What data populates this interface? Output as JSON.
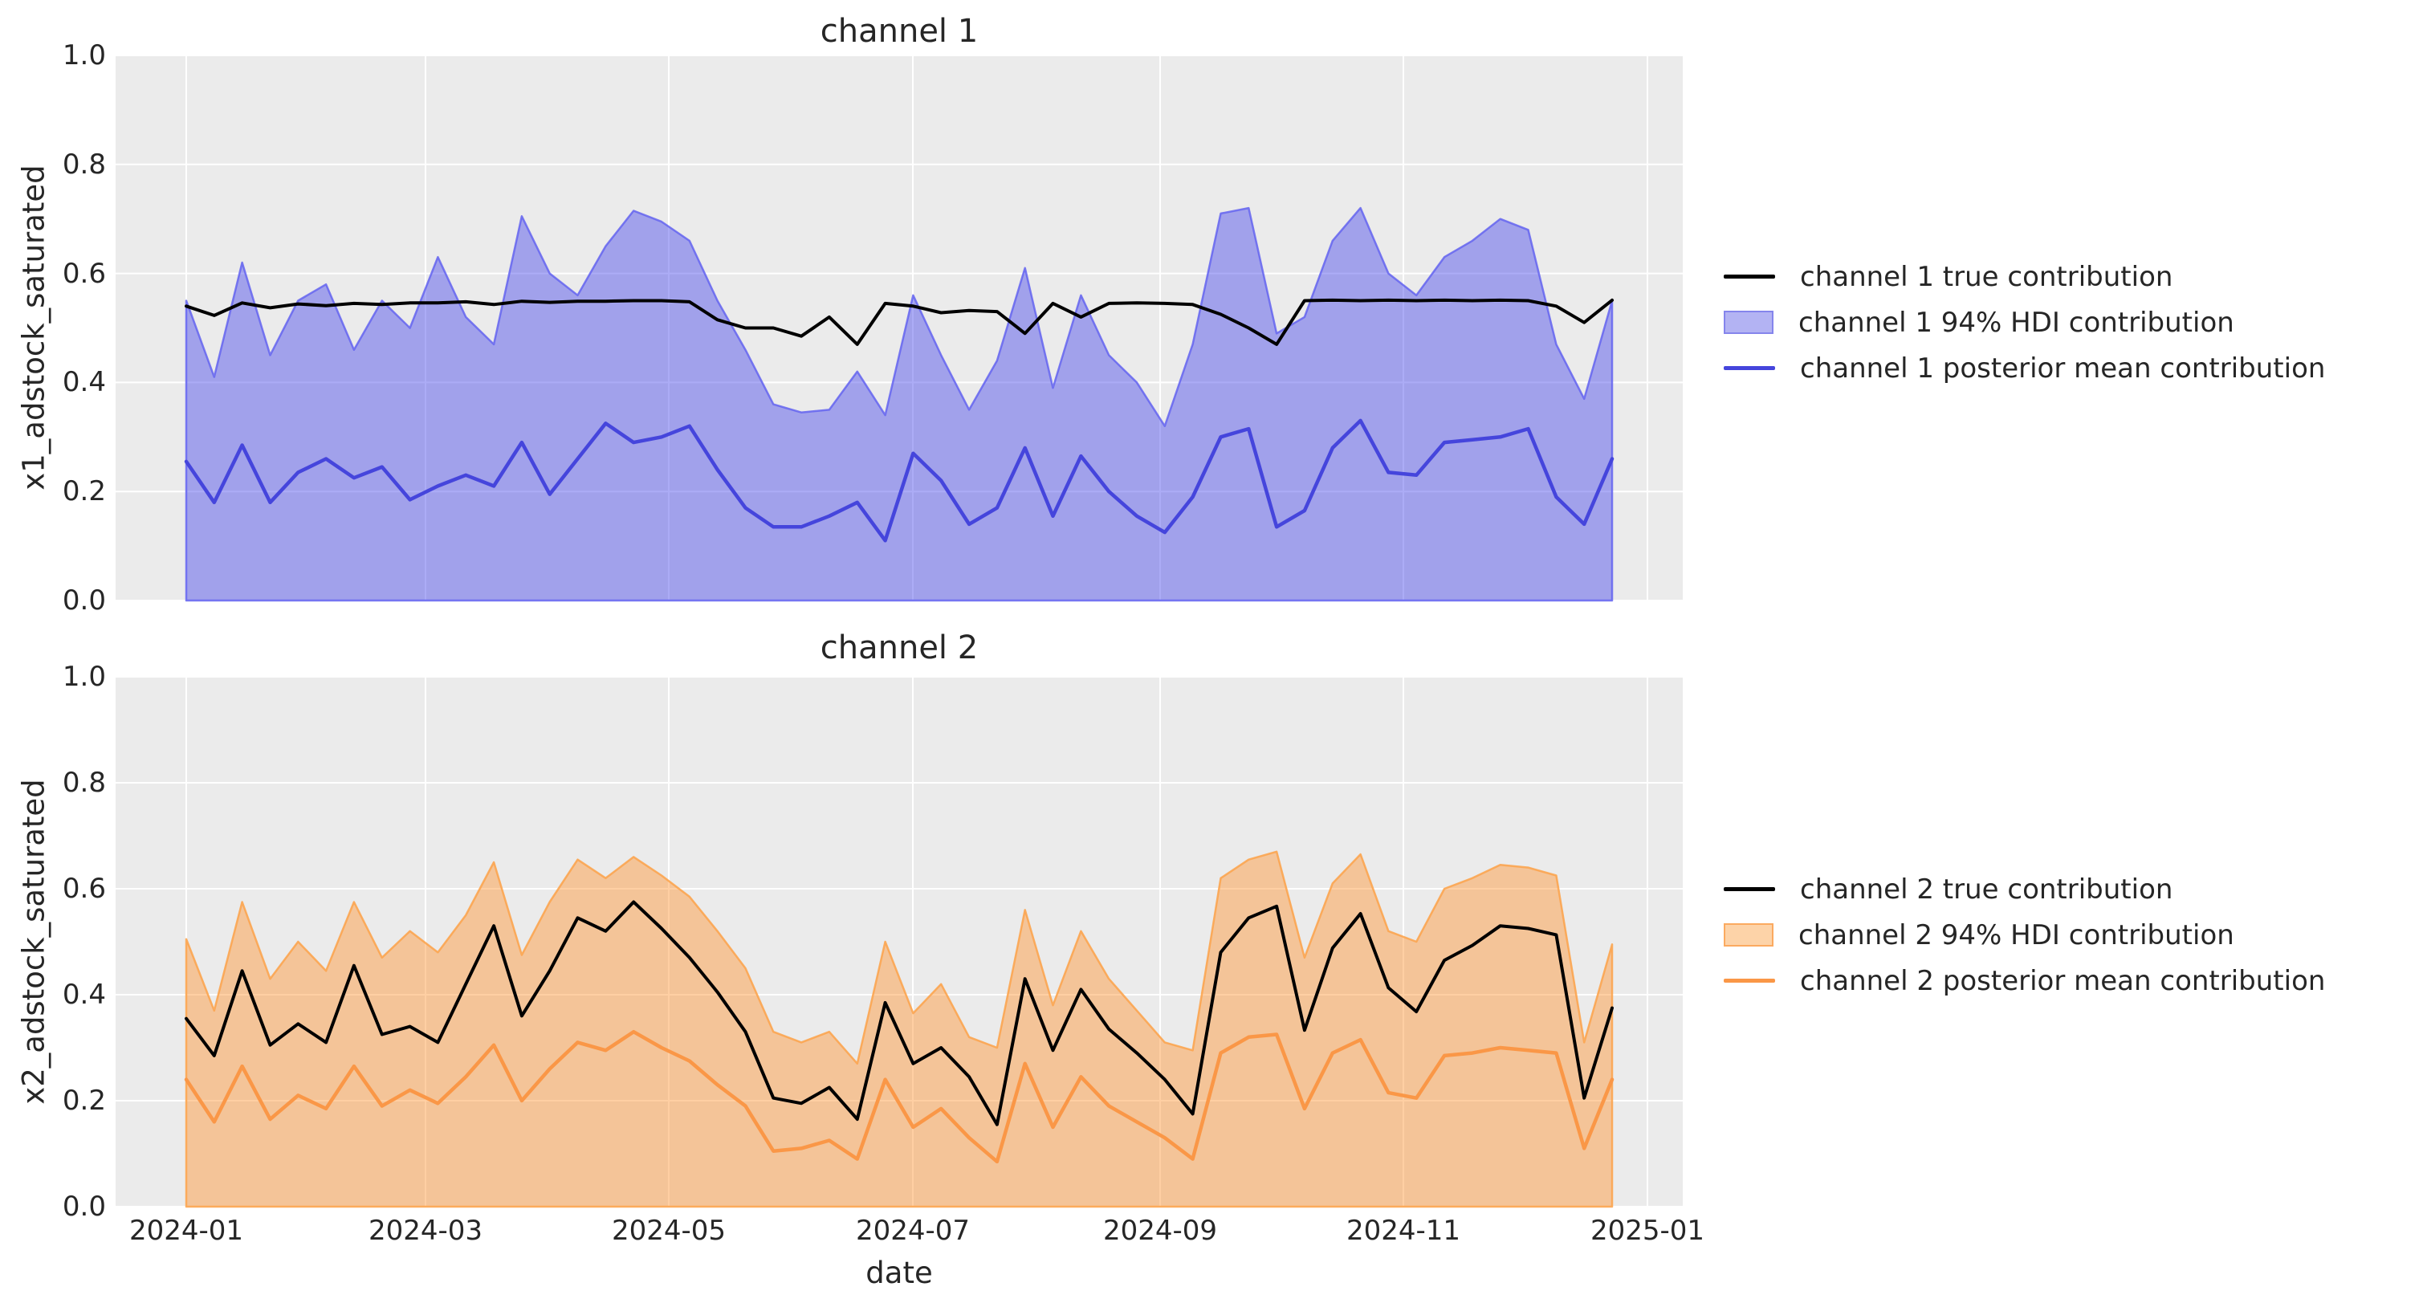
{
  "figure": {
    "background": "#ffffff",
    "plot_background": "#ebebeb",
    "grid_color": "#ffffff",
    "text_color": "#262626"
  },
  "labels": {
    "xlabel": "date"
  },
  "chart_data": [
    {
      "type": "line",
      "title": "channel 1",
      "ylabel": "x1_adstock_saturated",
      "xlabel": "",
      "ylim": [
        0.0,
        1.0
      ],
      "y_ticklabels": [
        "0.0",
        "0.2",
        "0.4",
        "0.6",
        "0.8",
        "1.0"
      ],
      "x_ticklabels": [],
      "x_gridline_dates": [
        "2024-01",
        "2024-03",
        "2024-05",
        "2024-07",
        "2024-09",
        "2024-11",
        "2025-01"
      ],
      "x_points": 52,
      "x_range_dates": [
        "2024-01-01",
        "2024-12-23"
      ],
      "grid": true,
      "legend_position": "right",
      "series": [
        {
          "name": "channel 1 true contribution",
          "kind": "line",
          "color": "#000000",
          "values": [
            0.54,
            0.523,
            0.546,
            0.537,
            0.544,
            0.541,
            0.545,
            0.543,
            0.546,
            0.546,
            0.548,
            0.543,
            0.549,
            0.547,
            0.549,
            0.549,
            0.55,
            0.55,
            0.548,
            0.515,
            0.5,
            0.5,
            0.485,
            0.52,
            0.47,
            0.545,
            0.54,
            0.528,
            0.532,
            0.53,
            0.49,
            0.545,
            0.52,
            0.545,
            0.546,
            0.545,
            0.543,
            0.525,
            0.5,
            0.47,
            0.55,
            0.551,
            0.55,
            0.551,
            0.55,
            0.551,
            0.55,
            0.551,
            0.55,
            0.54,
            0.51,
            0.551
          ]
        },
        {
          "name": "channel 1 94% HDI contribution",
          "kind": "band",
          "fill": "rgba(72,72,235,0.45)",
          "edge": "rgba(100,100,240,0.85)",
          "swatch_fill": "#b3b3f3",
          "swatch_edge": "#8585ec",
          "lower": 0.0,
          "upper": [
            0.55,
            0.41,
            0.62,
            0.45,
            0.55,
            0.58,
            0.46,
            0.55,
            0.5,
            0.63,
            0.52,
            0.47,
            0.705,
            0.6,
            0.56,
            0.65,
            0.715,
            0.695,
            0.66,
            0.55,
            0.46,
            0.36,
            0.345,
            0.35,
            0.42,
            0.34,
            0.56,
            0.45,
            0.35,
            0.44,
            0.61,
            0.39,
            0.56,
            0.45,
            0.4,
            0.32,
            0.47,
            0.71,
            0.72,
            0.49,
            0.52,
            0.66,
            0.72,
            0.6,
            0.56,
            0.63,
            0.66,
            0.7,
            0.68,
            0.47,
            0.37,
            0.55
          ]
        },
        {
          "name": "channel 1 posterior mean contribution",
          "kind": "line",
          "color": "#4545dc",
          "values": [
            0.255,
            0.18,
            0.285,
            0.18,
            0.235,
            0.26,
            0.225,
            0.245,
            0.185,
            0.21,
            0.23,
            0.21,
            0.29,
            0.195,
            0.26,
            0.325,
            0.29,
            0.3,
            0.32,
            0.24,
            0.17,
            0.135,
            0.135,
            0.155,
            0.18,
            0.11,
            0.27,
            0.22,
            0.14,
            0.17,
            0.28,
            0.155,
            0.265,
            0.2,
            0.155,
            0.125,
            0.19,
            0.3,
            0.315,
            0.135,
            0.165,
            0.28,
            0.33,
            0.235,
            0.23,
            0.29,
            0.295,
            0.3,
            0.315,
            0.19,
            0.14,
            0.26
          ]
        }
      ]
    },
    {
      "type": "line",
      "title": "channel 2",
      "ylabel": "x2_adstock_saturated",
      "xlabel": "date",
      "ylim": [
        0.0,
        1.0
      ],
      "y_ticklabels": [
        "0.0",
        "0.2",
        "0.4",
        "0.6",
        "0.8",
        "1.0"
      ],
      "x_ticklabels": [
        "2024-01",
        "2024-03",
        "2024-05",
        "2024-07",
        "2024-09",
        "2024-11",
        "2025-01"
      ],
      "x_gridline_dates": [
        "2024-01",
        "2024-03",
        "2024-05",
        "2024-07",
        "2024-09",
        "2024-11",
        "2025-01"
      ],
      "x_points": 52,
      "x_range_dates": [
        "2024-01-01",
        "2024-12-23"
      ],
      "grid": true,
      "legend_position": "right",
      "series": [
        {
          "name": "channel 2 true contribution",
          "kind": "line",
          "color": "#000000",
          "values": [
            0.355,
            0.285,
            0.445,
            0.305,
            0.345,
            0.31,
            0.455,
            0.325,
            0.34,
            0.31,
            0.42,
            0.53,
            0.36,
            0.445,
            0.545,
            0.52,
            0.575,
            0.525,
            0.47,
            0.405,
            0.33,
            0.205,
            0.195,
            0.225,
            0.165,
            0.385,
            0.27,
            0.3,
            0.245,
            0.155,
            0.43,
            0.295,
            0.41,
            0.335,
            0.29,
            0.24,
            0.175,
            0.48,
            0.545,
            0.567,
            0.333,
            0.488,
            0.553,
            0.413,
            0.368,
            0.465,
            0.493,
            0.53,
            0.525,
            0.513,
            0.205,
            0.375
          ]
        },
        {
          "name": "channel 2 94% HDI contribution",
          "kind": "band",
          "fill": "rgba(255,148,50,0.45)",
          "edge": "rgba(252,165,80,0.9)",
          "swatch_fill": "#fdd3a8",
          "swatch_edge": "#fbaa60",
          "lower": 0.0,
          "upper": [
            0.505,
            0.37,
            0.575,
            0.43,
            0.5,
            0.445,
            0.575,
            0.47,
            0.52,
            0.48,
            0.55,
            0.65,
            0.475,
            0.575,
            0.655,
            0.62,
            0.66,
            0.625,
            0.585,
            0.52,
            0.45,
            0.33,
            0.31,
            0.33,
            0.27,
            0.5,
            0.365,
            0.42,
            0.32,
            0.3,
            0.56,
            0.38,
            0.52,
            0.43,
            0.37,
            0.31,
            0.295,
            0.62,
            0.655,
            0.67,
            0.47,
            0.61,
            0.665,
            0.52,
            0.5,
            0.6,
            0.62,
            0.645,
            0.64,
            0.625,
            0.31,
            0.495
          ]
        },
        {
          "name": "channel 2 posterior mean contribution",
          "kind": "line",
          "color": "#fa9747",
          "values": [
            0.24,
            0.16,
            0.265,
            0.165,
            0.21,
            0.185,
            0.265,
            0.19,
            0.22,
            0.195,
            0.245,
            0.305,
            0.2,
            0.26,
            0.31,
            0.295,
            0.33,
            0.3,
            0.275,
            0.23,
            0.19,
            0.105,
            0.11,
            0.125,
            0.09,
            0.24,
            0.15,
            0.185,
            0.13,
            0.085,
            0.27,
            0.15,
            0.245,
            0.19,
            0.16,
            0.13,
            0.09,
            0.29,
            0.32,
            0.325,
            0.185,
            0.29,
            0.315,
            0.215,
            0.205,
            0.285,
            0.29,
            0.3,
            0.295,
            0.29,
            0.11,
            0.24
          ]
        }
      ]
    }
  ]
}
